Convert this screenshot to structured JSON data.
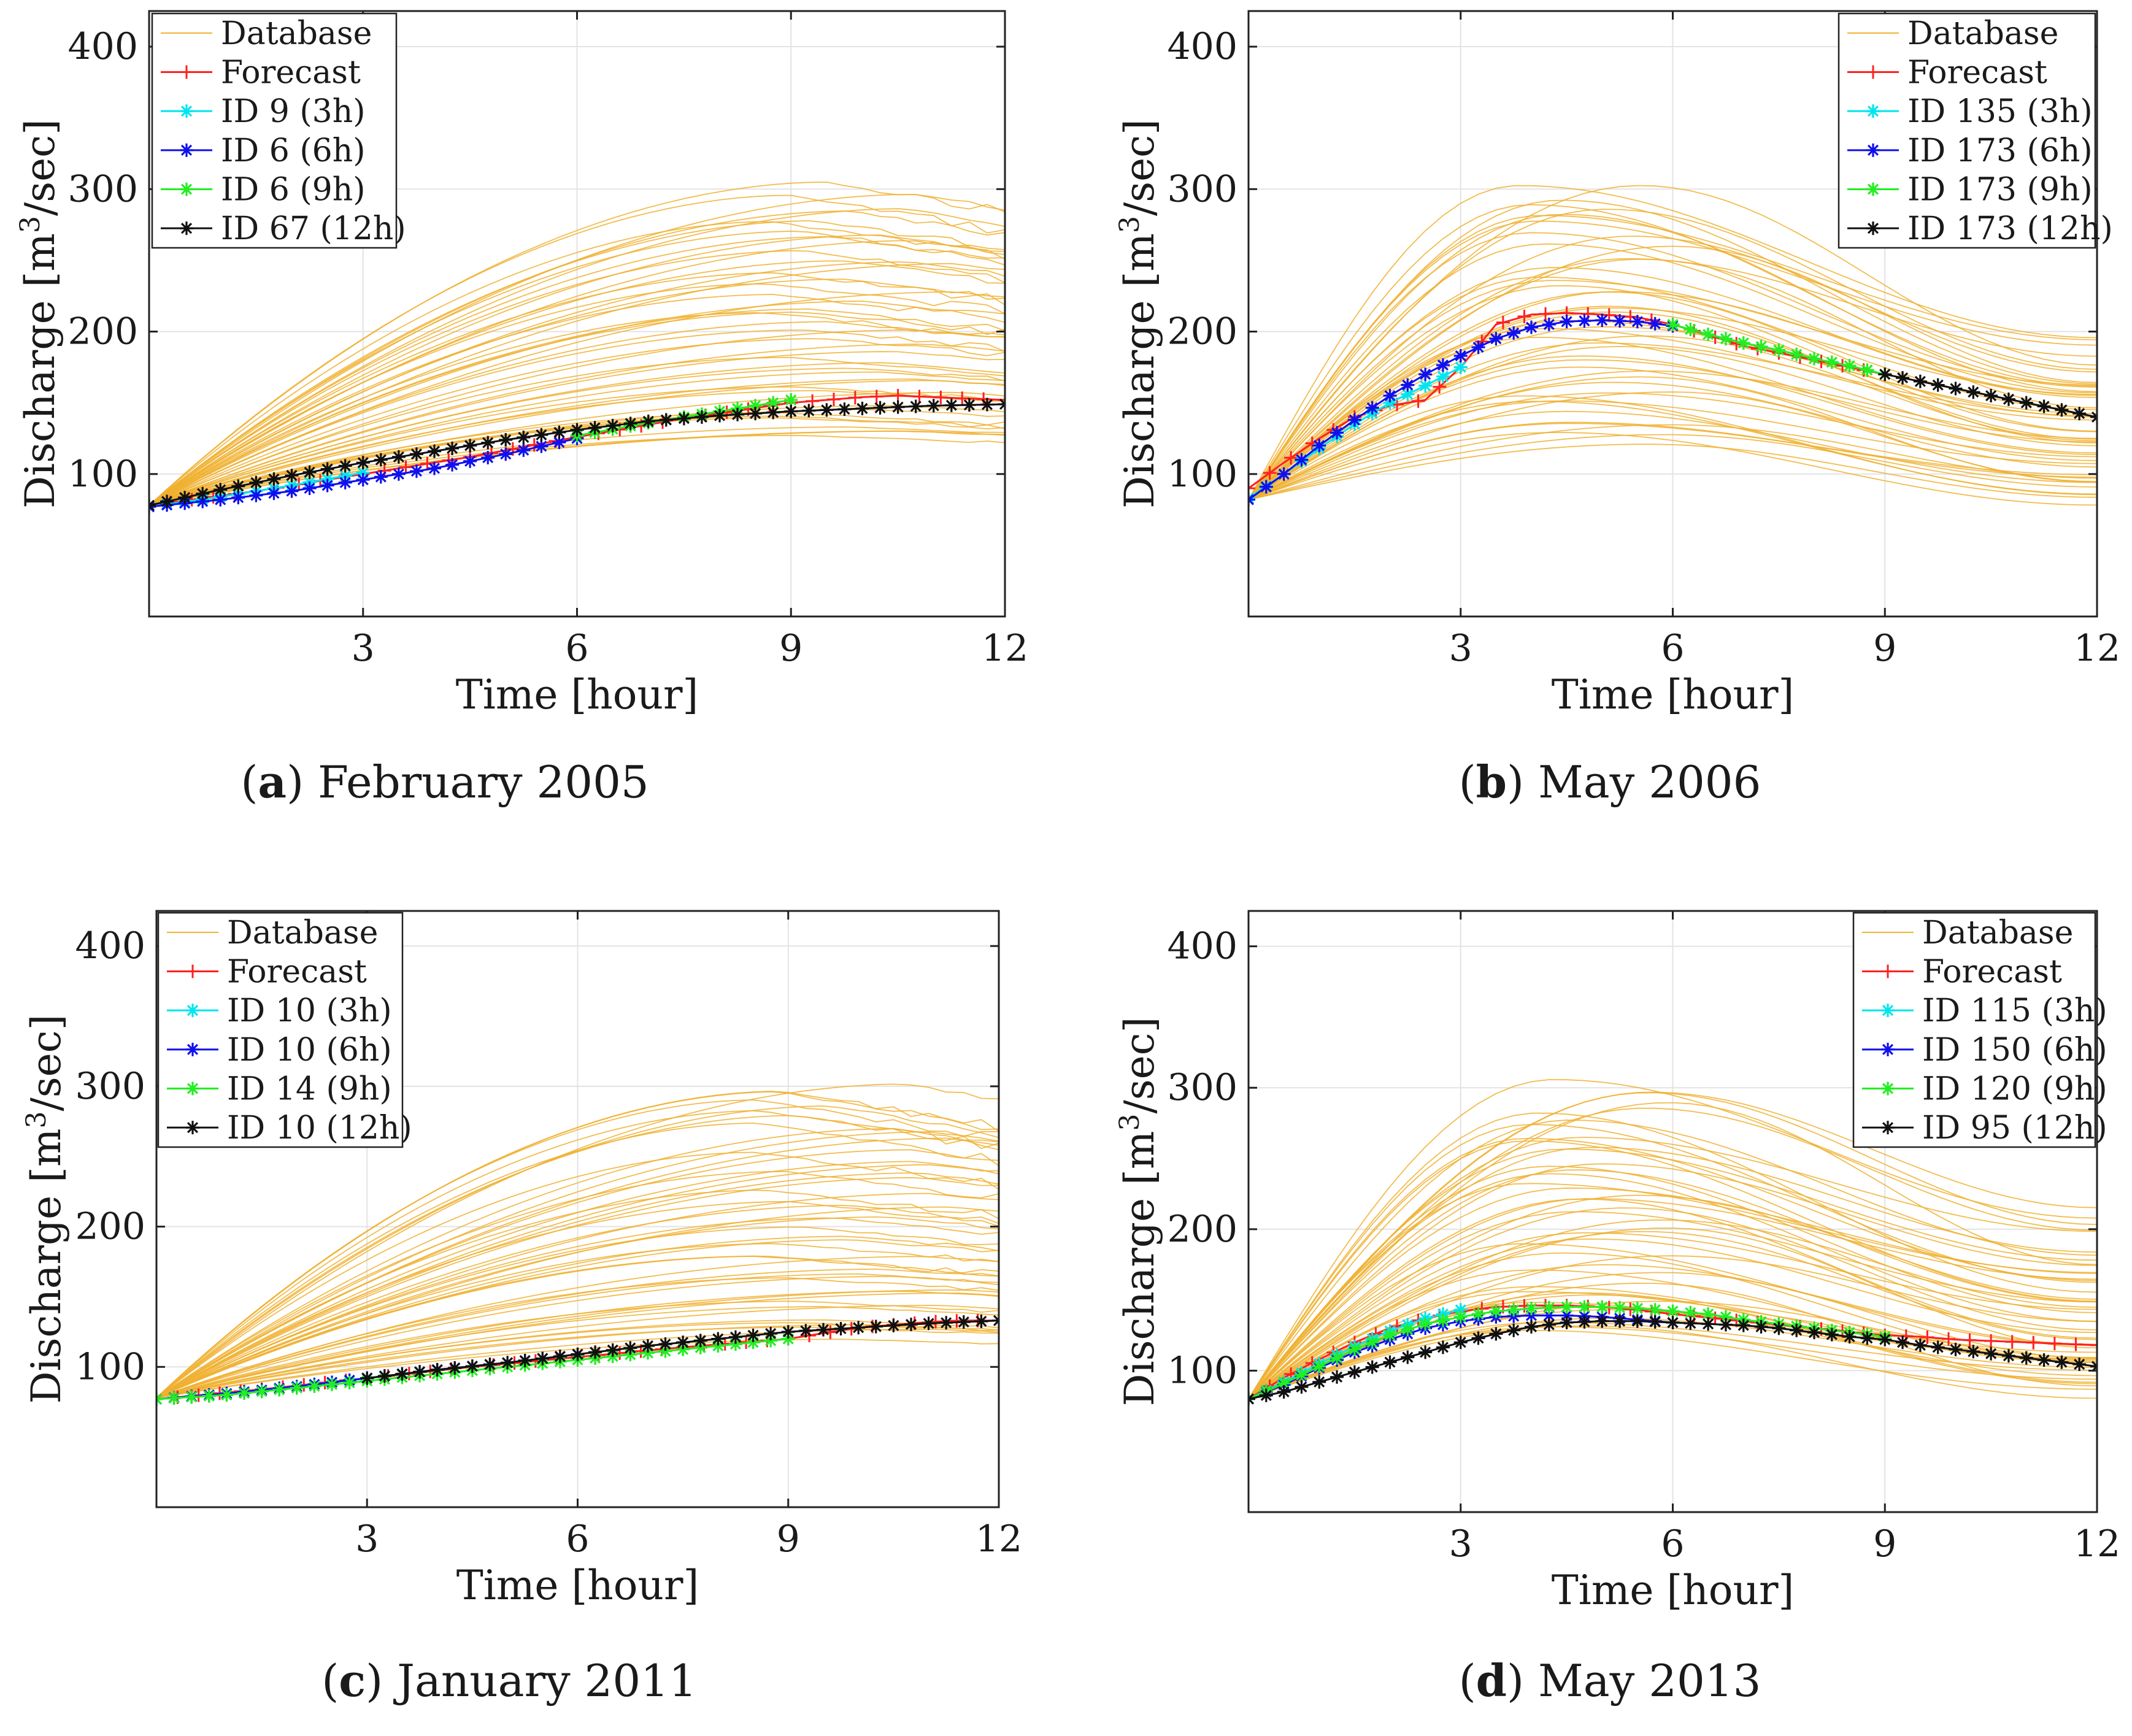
{
  "figure": {
    "colors": {
      "database": "#f0b030",
      "forecast": "#ff2020",
      "id_3h": "#00e5ee",
      "id_6h": "#1010ee",
      "id_9h": "#22ee22",
      "id_12h": "#101010",
      "grid": "#e3e3e3",
      "axis": "#222222"
    },
    "icons": {
      "line_marker_plus": "plus-marker-icon",
      "line_marker_star": "star-marker-icon"
    }
  },
  "chart_data": [
    {
      "type": "line",
      "caption_letter": "a",
      "caption_text": "February 2005",
      "xlabel": "Time [hour]",
      "ylabel_main": "Discharge [m",
      "ylabel_sup": "3",
      "ylabel_tail": "/sec]",
      "xlim": [
        0,
        12
      ],
      "ylim": [
        0,
        425
      ],
      "xticks": [
        3,
        6,
        9,
        12
      ],
      "xtick_labels": [
        "3",
        "6",
        "9",
        "12"
      ],
      "yticks": [
        100,
        200,
        300,
        400
      ],
      "ytick_labels": [
        "100",
        "200",
        "300",
        "400"
      ],
      "grid": true,
      "legend_position": "top-left",
      "legend": [
        "Database",
        "Forecast",
        "ID 9 (3h)",
        "ID 6 (6h)",
        "ID 6 (9h)",
        "ID 67 (12h)"
      ],
      "database": {
        "start": 78,
        "shape": "rising",
        "peak_hour": 10,
        "peak_min": 125,
        "peak_max": 302,
        "curve_count": 48
      },
      "series": [
        {
          "name": "Forecast",
          "marker": "plus",
          "x": [
            0,
            1.5,
            3,
            4.5,
            6,
            7.5,
            9,
            9.5,
            10,
            10.5,
            11,
            11.5,
            12
          ],
          "values": [
            78,
            88,
            100,
            112,
            126,
            139,
            150,
            152,
            154,
            155,
            154,
            153,
            152
          ]
        },
        {
          "name": "ID 9 (3h)",
          "marker": "star",
          "x": [
            0,
            1,
            2,
            3
          ],
          "values": [
            77,
            84,
            92,
            101
          ]
        },
        {
          "name": "ID 6 (6h)",
          "marker": "star",
          "x": [
            0,
            1,
            2,
            3,
            4,
            5,
            6
          ],
          "values": [
            77,
            82,
            88,
            96,
            104,
            114,
            125
          ]
        },
        {
          "name": "ID 6 (9h)",
          "marker": "star",
          "x": [
            6,
            7,
            8,
            9
          ],
          "values": [
            127,
            136,
            144,
            152
          ]
        },
        {
          "name": "ID 67 (12h)",
          "marker": "star",
          "x": [
            0,
            1,
            2,
            3,
            4,
            5,
            6,
            7,
            8,
            9,
            10,
            11,
            12
          ],
          "values": [
            78,
            89,
            99,
            108,
            116,
            124,
            131,
            137,
            141,
            144,
            146,
            148,
            149
          ]
        }
      ]
    },
    {
      "type": "line",
      "caption_letter": "b",
      "caption_text": "May 2006",
      "xlabel": "Time [hour]",
      "ylabel_main": "Discharge [m",
      "ylabel_sup": "3",
      "ylabel_tail": "/sec]",
      "xlim": [
        0,
        12
      ],
      "ylim": [
        0,
        425
      ],
      "xticks": [
        3,
        6,
        9,
        12
      ],
      "xtick_labels": [
        "3",
        "6",
        "9",
        "12"
      ],
      "yticks": [
        100,
        200,
        300,
        400
      ],
      "ytick_labels": [
        "100",
        "200",
        "300",
        "400"
      ],
      "grid": true,
      "legend_position": "top-right",
      "legend": [
        "Database",
        "Forecast",
        "ID 135 (3h)",
        "ID 173 (6h)",
        "ID 173 (9h)",
        "ID 173 (12h)"
      ],
      "database": {
        "start": 82,
        "shape": "peaked",
        "peak_hour": 4.5,
        "peak_min": 125,
        "peak_max": 302,
        "curve_count": 48
      },
      "series": [
        {
          "name": "Forecast",
          "marker": "plus",
          "x": [
            0,
            0.5,
            1,
            1.5,
            2,
            2.5,
            3,
            3.5,
            4,
            4.5,
            5,
            5.5,
            6,
            7,
            8,
            9
          ],
          "values": [
            90,
            108,
            125,
            140,
            148,
            152,
            175,
            205,
            212,
            213,
            212,
            210,
            205,
            190,
            180,
            170
          ]
        },
        {
          "name": "ID 135 (3h)",
          "marker": "star",
          "x": [
            0,
            0.5,
            1,
            1.5,
            2,
            2.5,
            3
          ],
          "values": [
            83,
            100,
            118,
            135,
            150,
            162,
            175
          ]
        },
        {
          "name": "ID 173 (6h)",
          "marker": "star",
          "x": [
            0,
            0.5,
            1,
            1.5,
            2,
            2.5,
            3,
            3.5,
            4,
            4.5,
            5,
            5.5,
            6
          ],
          "values": [
            82,
            100,
            120,
            138,
            155,
            170,
            183,
            195,
            203,
            207,
            208,
            207,
            204
          ]
        },
        {
          "name": "ID 173 (9h)",
          "marker": "star",
          "x": [
            6,
            6.5,
            7,
            7.5,
            8,
            8.5,
            9
          ],
          "values": [
            205,
            198,
            192,
            187,
            181,
            176,
            170
          ]
        },
        {
          "name": "ID 173 (12h)",
          "marker": "star",
          "x": [
            9,
            9.5,
            10,
            10.5,
            11,
            11.5,
            12
          ],
          "values": [
            170,
            165,
            160,
            155,
            150,
            145,
            140
          ]
        }
      ]
    },
    {
      "type": "line",
      "caption_letter": "c",
      "caption_text": "January 2011",
      "xlabel": "Time [hour]",
      "ylabel_main": "Discharge [m",
      "ylabel_sup": "3",
      "ylabel_tail": "/sec]",
      "xlim": [
        0,
        12
      ],
      "ylim": [
        0,
        425
      ],
      "xticks": [
        3,
        6,
        9,
        12
      ],
      "xtick_labels": [
        "3",
        "6",
        "9",
        "12"
      ],
      "yticks": [
        100,
        200,
        300,
        400
      ],
      "ytick_labels": [
        "100",
        "200",
        "300",
        "400"
      ],
      "grid": true,
      "legend_position": "top-left",
      "legend": [
        "Database",
        "Forecast",
        "ID 10 (3h)",
        "ID 10 (6h)",
        "ID 14 (9h)",
        "ID 10 (12h)"
      ],
      "database": {
        "start": 78,
        "shape": "rising",
        "peak_hour": 10,
        "peak_min": 120,
        "peak_max": 302,
        "curve_count": 48
      },
      "series": [
        {
          "name": "Forecast",
          "marker": "plus",
          "x": [
            0,
            1.5,
            3,
            4.5,
            6,
            7.5,
            9,
            9.5,
            10,
            10.5,
            11,
            11.5,
            12
          ],
          "values": [
            77,
            84,
            92,
            100,
            107,
            114,
            120,
            124,
            128,
            130,
            132,
            133,
            133
          ]
        },
        {
          "name": "ID 10 (3h)",
          "marker": "star",
          "x": [
            0,
            1,
            2,
            3
          ],
          "values": [
            77,
            81,
            86,
            92
          ]
        },
        {
          "name": "ID 10 (6h)",
          "marker": "star",
          "x": [
            0,
            1,
            2,
            3,
            4,
            5,
            6
          ],
          "values": [
            77,
            81,
            86,
            92,
            98,
            103,
            109
          ]
        },
        {
          "name": "ID 14 (9h)",
          "marker": "star",
          "x": [
            0,
            1,
            2,
            3,
            4,
            5,
            6,
            7,
            8,
            9
          ],
          "values": [
            77,
            80,
            85,
            90,
            95,
            100,
            105,
            110,
            115,
            120
          ]
        },
        {
          "name": "ID 10 (12h)",
          "marker": "star",
          "x": [
            3,
            4,
            5,
            6,
            7,
            8,
            9,
            10,
            11,
            12
          ],
          "values": [
            92,
            98,
            103,
            109,
            115,
            120,
            125,
            128,
            131,
            133
          ]
        }
      ]
    },
    {
      "type": "line",
      "caption_letter": "d",
      "caption_text": "May 2013",
      "xlabel": "Time [hour]",
      "ylabel_main": "Discharge [m",
      "ylabel_sup": "3",
      "ylabel_tail": "/sec]",
      "xlim": [
        0,
        12
      ],
      "ylim": [
        0,
        425
      ],
      "xticks": [
        3,
        6,
        9,
        12
      ],
      "xtick_labels": [
        "3",
        "6",
        "9",
        "12"
      ],
      "yticks": [
        100,
        200,
        300,
        400
      ],
      "ytick_labels": [
        "100",
        "200",
        "300",
        "400"
      ],
      "grid": true,
      "legend_position": "top-right",
      "legend": [
        "Database",
        "Forecast",
        "ID 115 (3h)",
        "ID 150 (6h)",
        "ID 120 (9h)",
        "ID 95 (12h)"
      ],
      "database": {
        "start": 80,
        "shape": "peaked",
        "peak_hour": 4.5,
        "peak_min": 125,
        "peak_max": 302,
        "curve_count": 48
      },
      "series": [
        {
          "name": "Forecast",
          "marker": "plus",
          "x": [
            0,
            0.5,
            1,
            1.5,
            2,
            2.5,
            3,
            3.5,
            4,
            4.5,
            5,
            5.5,
            6,
            7,
            8,
            9,
            9.5,
            10,
            10.5,
            11,
            11.5,
            12
          ],
          "values": [
            80,
            95,
            108,
            120,
            130,
            137,
            142,
            145,
            146,
            146,
            145,
            143,
            140,
            135,
            130,
            125,
            124,
            122,
            121,
            120,
            119,
            118
          ]
        },
        {
          "name": "ID 115 (3h)",
          "marker": "star",
          "x": [
            0,
            0.5,
            1,
            1.5,
            2,
            2.5,
            3
          ],
          "values": [
            80,
            92,
            105,
            117,
            128,
            137,
            143
          ]
        },
        {
          "name": "ID 150 (6h)",
          "marker": "star",
          "x": [
            0,
            0.5,
            1,
            1.5,
            2,
            2.5,
            3,
            3.5,
            4,
            4.5,
            5,
            5.5,
            6
          ],
          "values": [
            80,
            90,
            102,
            113,
            122,
            130,
            135,
            138,
            139,
            139,
            138,
            136,
            134
          ]
        },
        {
          "name": "ID 120 (9h)",
          "marker": "star",
          "x": [
            0,
            0.5,
            1,
            1.5,
            2,
            2.5,
            3,
            3.5,
            4,
            4.5,
            5,
            5.5,
            6,
            6.5,
            7,
            7.5,
            8,
            8.5,
            9
          ],
          "values": [
            80,
            91,
            103,
            115,
            125,
            133,
            138,
            142,
            144,
            145,
            145,
            144,
            142,
            140,
            136,
            133,
            130,
            127,
            124
          ]
        },
        {
          "name": "ID 95 (12h)",
          "marker": "star",
          "x": [
            0,
            0.5,
            1,
            1.5,
            2,
            2.5,
            3,
            3.5,
            4,
            4.5,
            5,
            5.5,
            6,
            6.5,
            7,
            7.5,
            8,
            8.5,
            9,
            9.5,
            10,
            10.5,
            11,
            11.5,
            12
          ],
          "values": [
            80,
            85,
            92,
            99,
            106,
            113,
            120,
            126,
            131,
            134,
            135,
            135,
            134,
            133,
            132,
            130,
            127,
            124,
            122,
            118,
            115,
            112,
            109,
            106,
            103
          ]
        }
      ]
    }
  ]
}
